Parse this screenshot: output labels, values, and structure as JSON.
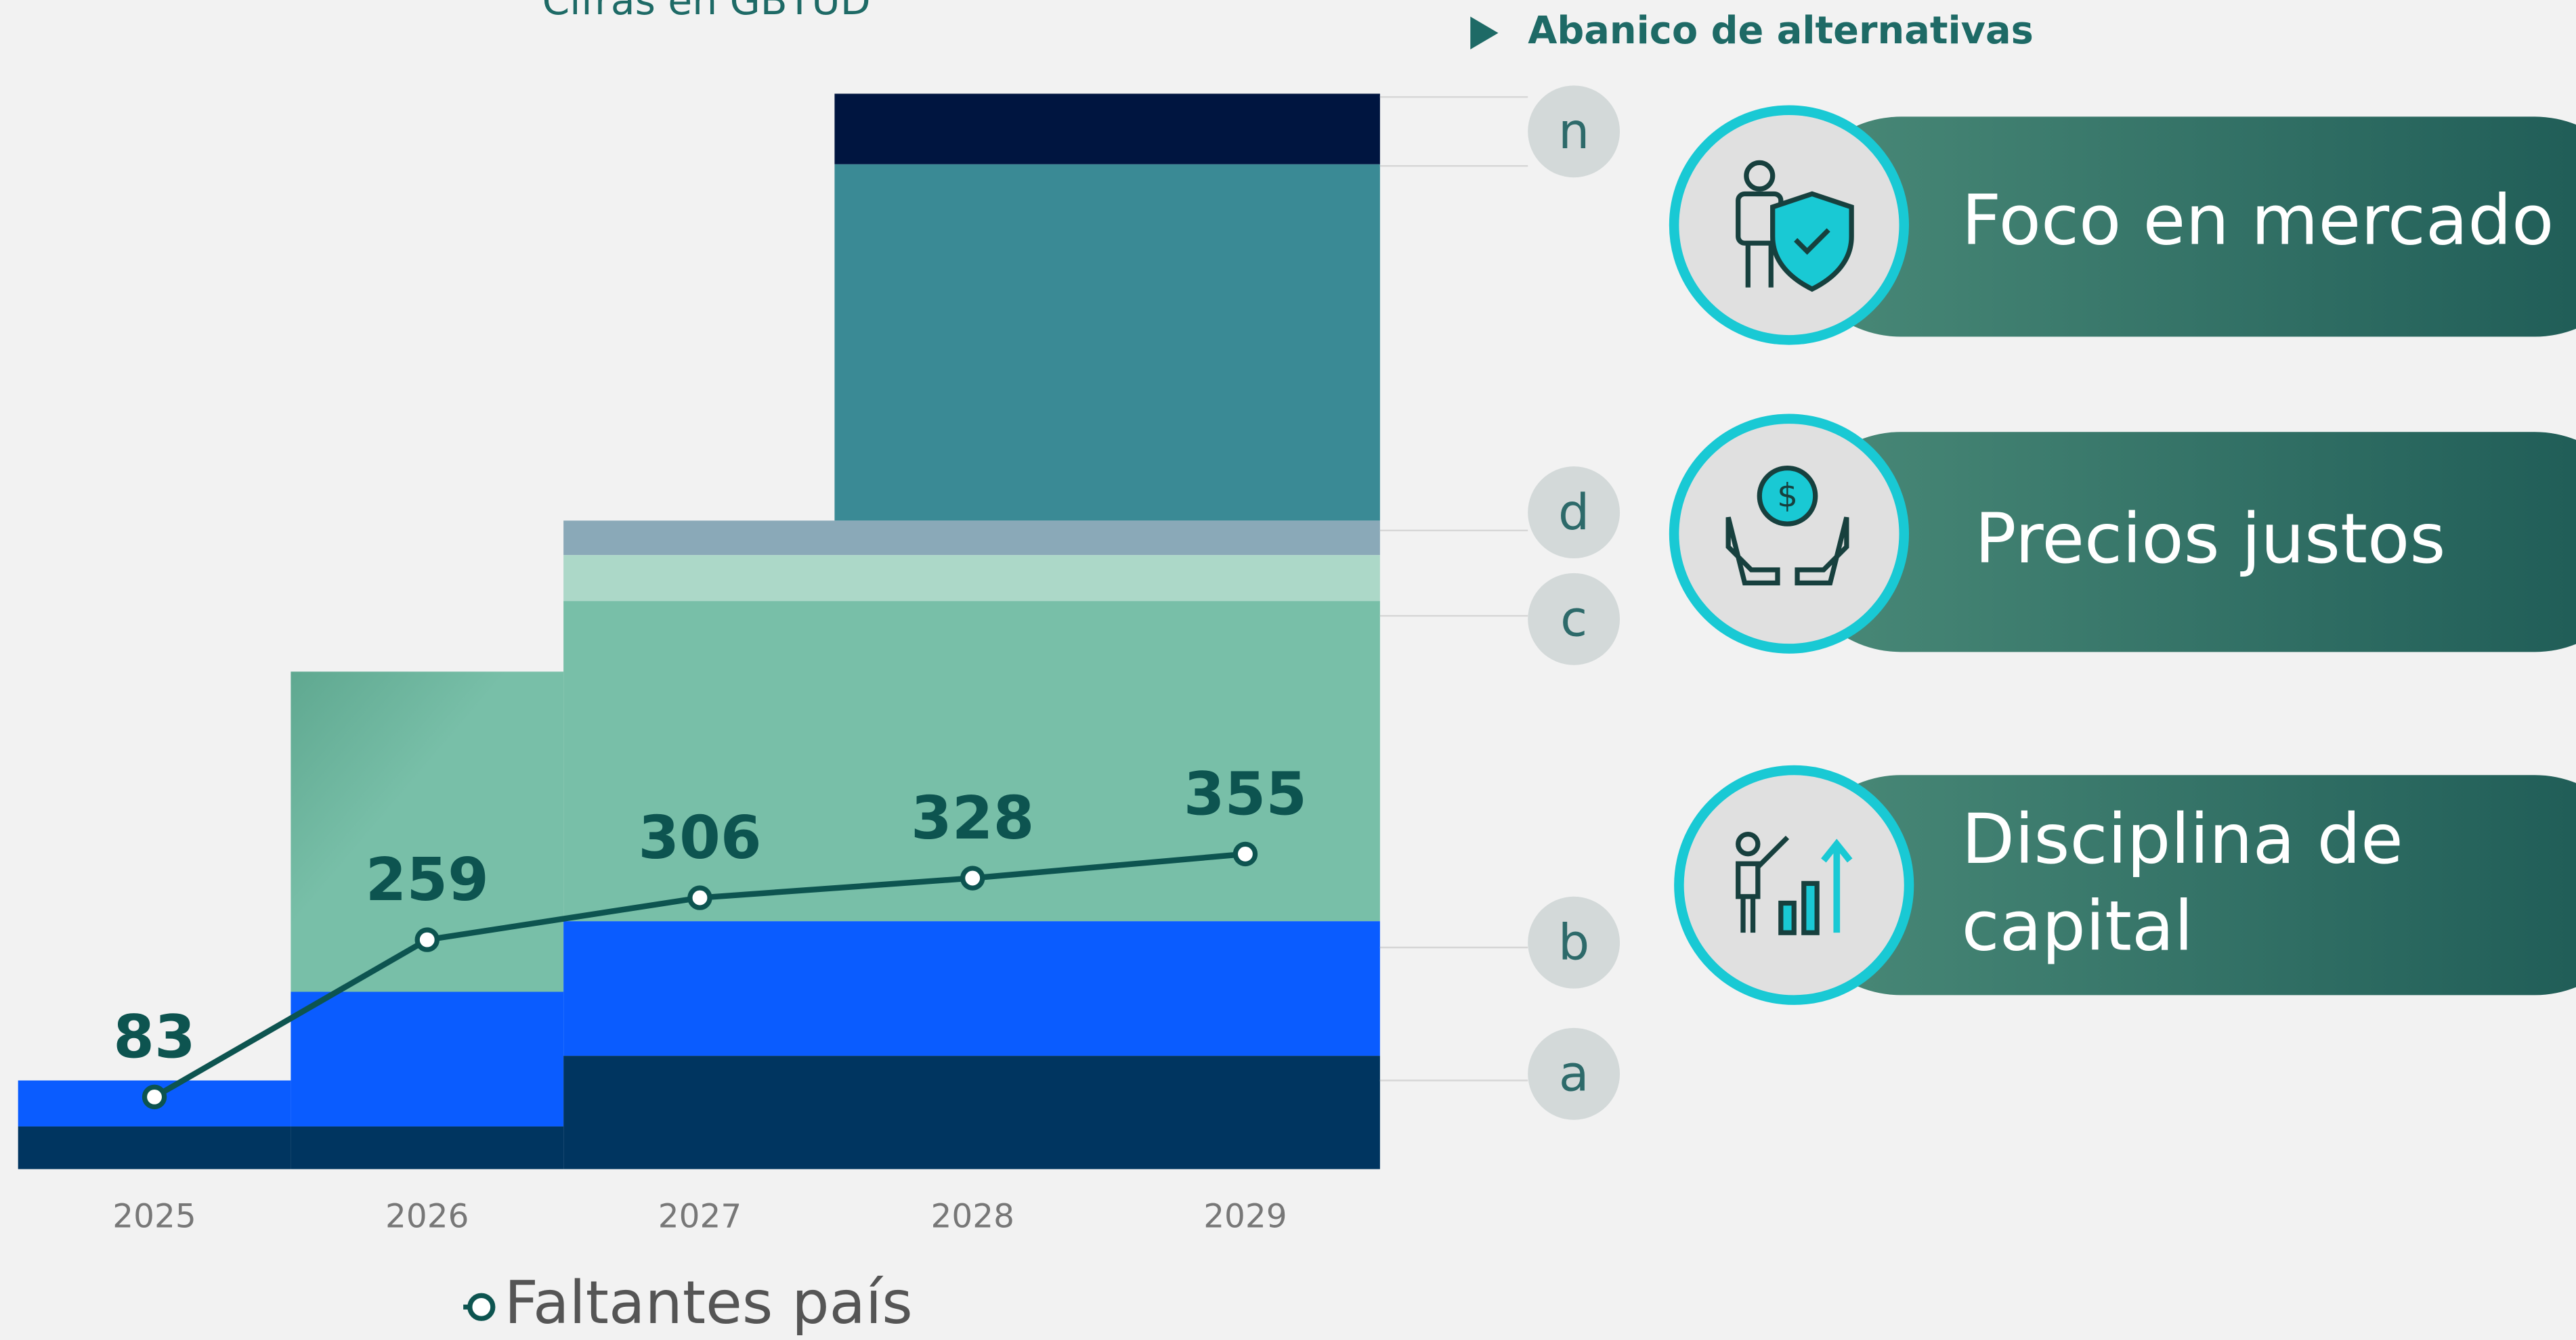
{
  "chart_data": {
    "type": "line",
    "subtitle": "Cifras en GBTUD",
    "categories": [
      "2025",
      "2026",
      "2027",
      "2028",
      "2029"
    ],
    "series": [
      {
        "name": "Faltantes país",
        "color": "#0d5450",
        "values": [
          83,
          259,
          306,
          328,
          355
        ]
      }
    ],
    "block_labels": [
      "n",
      "d",
      "c",
      "b",
      "a"
    ]
  },
  "alternatives": {
    "title": "Abanico de alternativas",
    "items": [
      [
        "Foco en mercado"
      ],
      [
        "Precios justos"
      ],
      [
        "Disciplina de",
        "capital"
      ]
    ]
  }
}
